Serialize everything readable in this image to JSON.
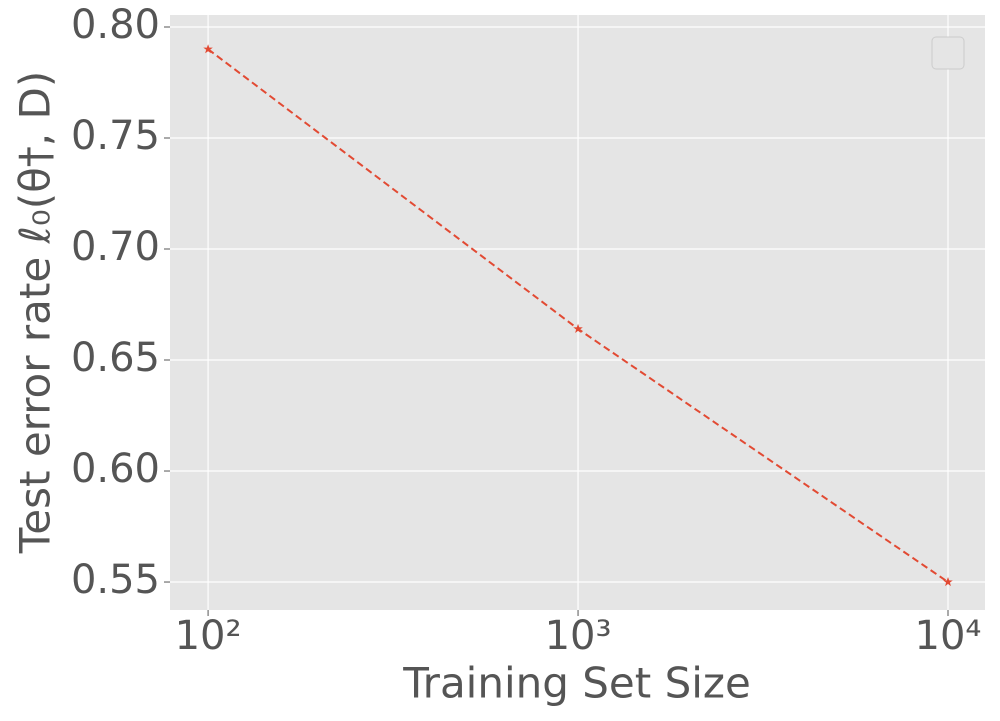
{
  "chart_data": {
    "type": "line",
    "x_label": "Training Set Size",
    "y_label": "Test error rate ℓ₀(θ†, D)",
    "x": [
      100,
      1000,
      10000
    ],
    "values": [
      0.79,
      0.664,
      0.55
    ],
    "color": "#e24a33",
    "log_x": true,
    "grid": true,
    "xlim": [
      78.9,
      12589
    ],
    "xticks": [
      {
        "value": 100,
        "label": "10²"
      },
      {
        "value": 1000,
        "label": "10³"
      },
      {
        "value": 10000,
        "label": "10⁴"
      }
    ],
    "ylim": [
      0.5374,
      0.8054
    ],
    "yticks": [
      {
        "value": 0.8,
        "label": "0.80"
      },
      0.75,
      {
        "value": 0.7,
        "label": "0.70"
      },
      0.65,
      {
        "value": 0.6,
        "label": "0.60"
      },
      0.55
    ]
  }
}
